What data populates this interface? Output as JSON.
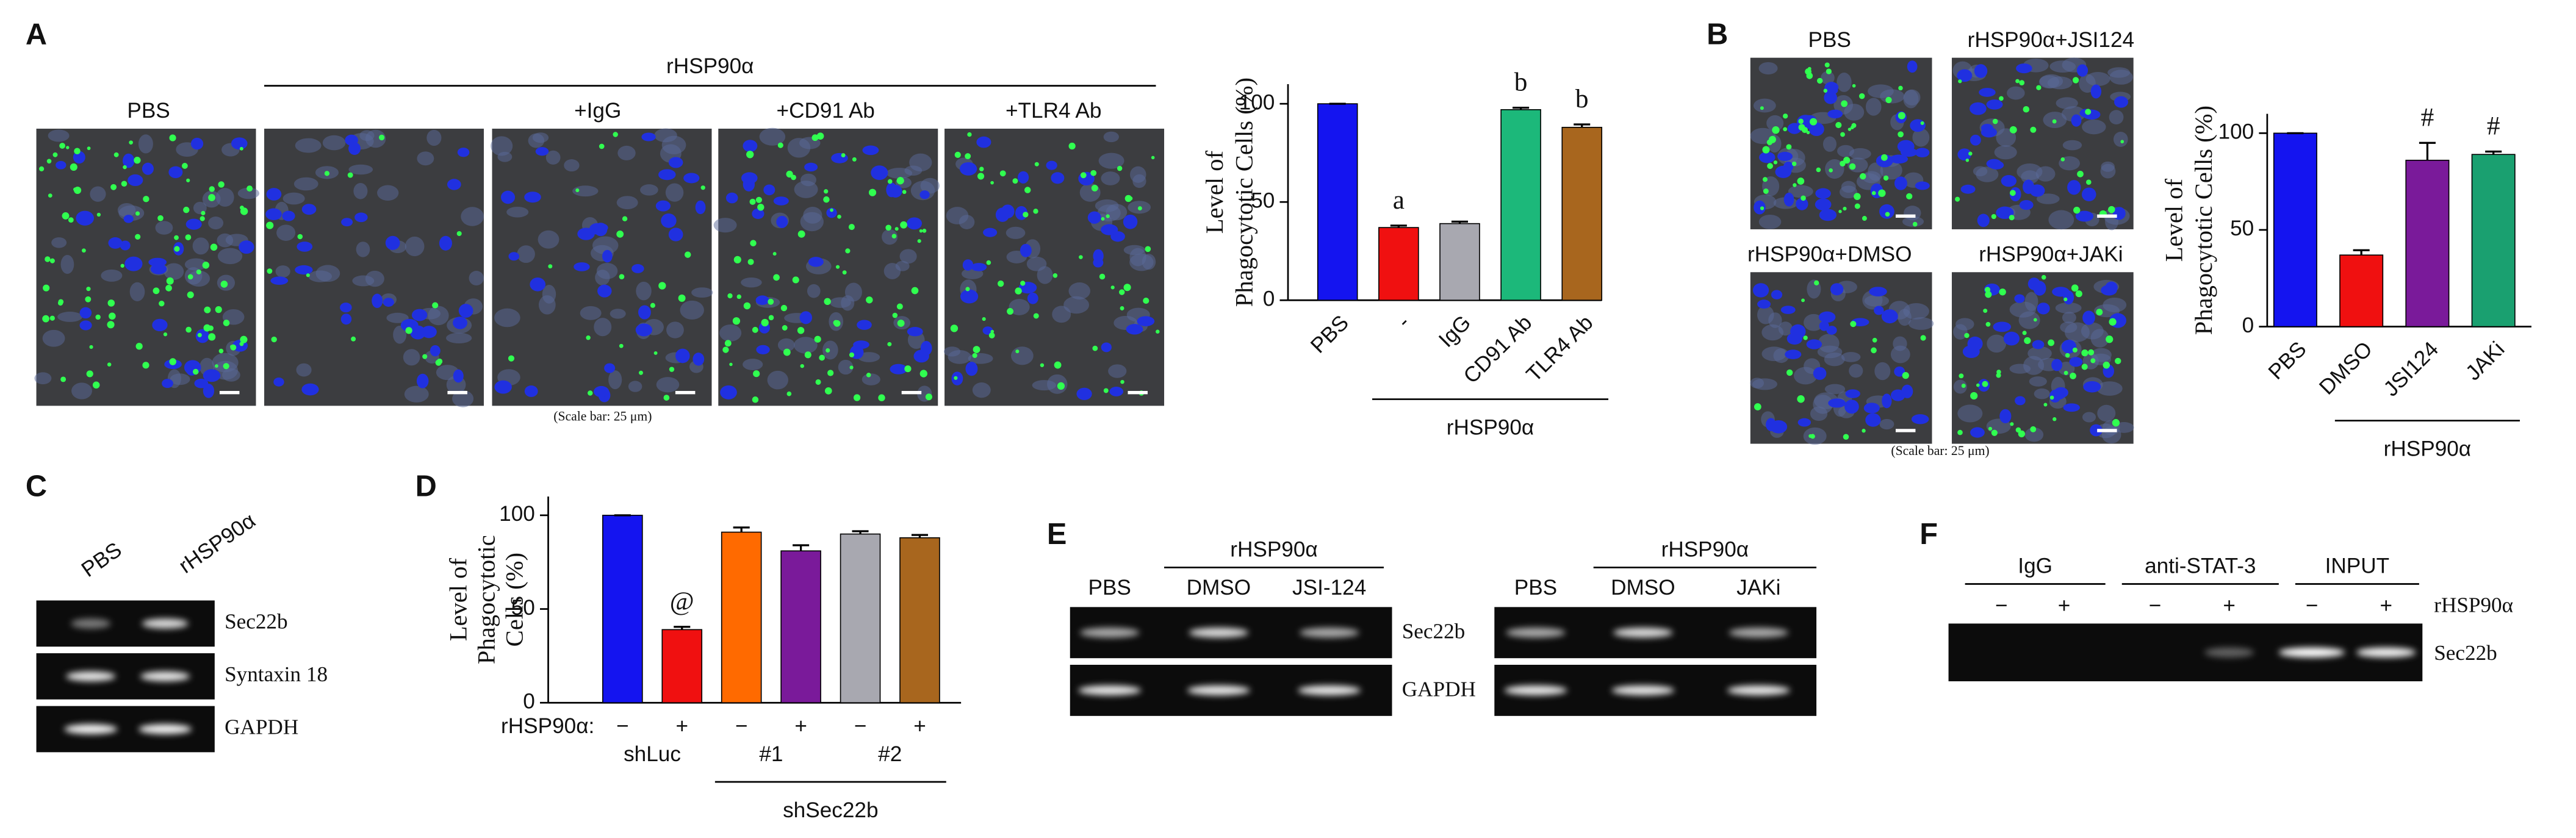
{
  "panel_labels": [
    "A",
    "B",
    "C",
    "D",
    "E",
    "F"
  ],
  "panel_a": {
    "treatment_header": "rHSP90α",
    "image_labels": [
      "PBS",
      "+IgG",
      "+CD91 Ab",
      "+TLR4 Ab"
    ],
    "scale_note": "(Scale bar: 25 μm)"
  },
  "panel_b": {
    "image_labels": [
      "PBS",
      "rHSP90α+JSI124",
      "rHSP90α+DMSO",
      "rHSP90α+JAKi"
    ],
    "scale_note": "(Scale bar: 25 μm)"
  },
  "panel_c": {
    "lanes": [
      "PBS",
      "rHSP90α"
    ],
    "rows": [
      "Sec22b",
      "Syntaxin 18",
      "GAPDH"
    ]
  },
  "panel_e": {
    "blots": [
      {
        "header": "rHSP90α",
        "lanes": [
          "PBS",
          "DMSO",
          "JSI-124"
        ]
      },
      {
        "header": "rHSP90α",
        "lanes": [
          "PBS",
          "DMSO",
          "JAKi"
        ]
      }
    ],
    "rows": [
      "Sec22b",
      "GAPDH"
    ]
  },
  "panel_f": {
    "groups": [
      "IgG",
      "anti-STAT-3",
      "INPUT"
    ],
    "signs": [
      "−",
      "+",
      "−",
      "+",
      "−",
      "+"
    ],
    "sign_label": "rHSP90α",
    "row": "Sec22b"
  },
  "chart_data": [
    {
      "type": "bar",
      "y_label": [
        "Level of",
        "Phagocytotic Cells (%)"
      ],
      "categories": [
        "PBS",
        "-",
        "IgG",
        "CD91 Ab",
        "TLR4 Ab"
      ],
      "values": [
        100,
        37,
        39,
        97,
        88
      ],
      "errors": [
        0,
        1,
        1,
        1,
        1.5
      ],
      "colors": [
        "#1414f0",
        "#f01010",
        "#a8a8b0",
        "#1cb87a",
        "#a8661e"
      ],
      "annotations": [
        null,
        "a",
        null,
        "b",
        "b"
      ],
      "groups": [
        {
          "label": "rHSP90α",
          "first": 1,
          "last": 4
        }
      ],
      "ylim": [
        0,
        110
      ],
      "yticks": [
        0,
        50,
        100
      ]
    },
    {
      "type": "bar",
      "y_label": [
        "Level of",
        "Phagocytotic Cells (%)"
      ],
      "categories": [
        "PBS",
        "DMSO",
        "JSI124",
        "JAKi"
      ],
      "values": [
        100,
        37,
        86,
        89
      ],
      "errors": [
        0,
        2.5,
        9,
        1.5
      ],
      "colors": [
        "#1414f0",
        "#f01010",
        "#7a1a9a",
        "#1aa070"
      ],
      "annotations": [
        null,
        null,
        "#",
        "#"
      ],
      "groups": [
        {
          "label": "rHSP90α",
          "first": 1,
          "last": 3
        }
      ],
      "ylim": [
        0,
        110
      ],
      "yticks": [
        0,
        50,
        100
      ]
    },
    {
      "type": "bar",
      "y_label": [
        "Level of",
        "Phagocytotic",
        "Cells (%)"
      ],
      "row_label": "rHSP90α:",
      "categories": [
        "−",
        "+",
        "−",
        "+",
        "−",
        "+"
      ],
      "values": [
        100,
        39,
        91,
        81,
        90,
        88
      ],
      "errors": [
        0,
        1.5,
        2.5,
        3,
        1.5,
        1.5
      ],
      "colors": [
        "#1414f0",
        "#f01010",
        "#ff6a00",
        "#7a1a9a",
        "#a8a8b0",
        "#a8661e"
      ],
      "annotations": [
        null,
        "@",
        null,
        null,
        null,
        null
      ],
      "groups": [
        {
          "label": "shLuc",
          "first": 0,
          "last": 1
        },
        {
          "label": "#1",
          "first": 2,
          "last": 3
        },
        {
          "label": "#2",
          "first": 4,
          "last": 5
        }
      ],
      "super_group": {
        "label": "shSec22b",
        "first": 2,
        "last": 5
      },
      "ylim": [
        0,
        110
      ],
      "yticks": [
        0,
        50,
        100
      ]
    }
  ]
}
